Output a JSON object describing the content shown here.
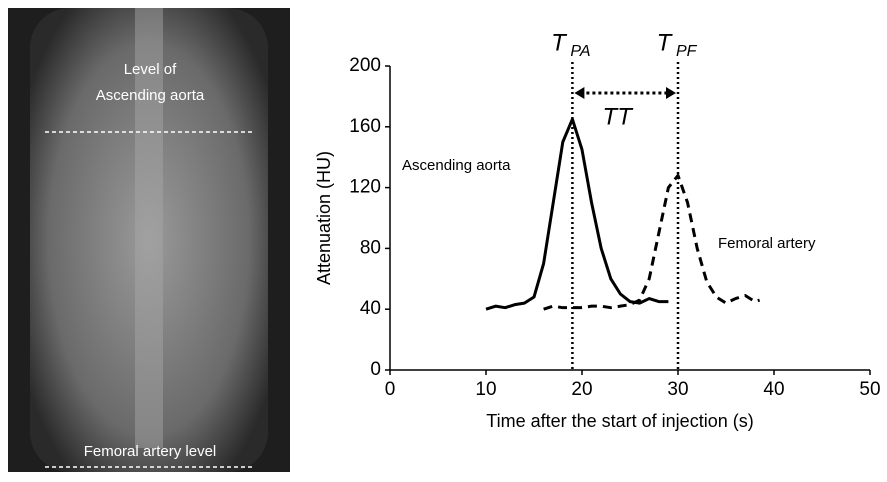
{
  "image": {
    "labels": [
      {
        "lines": [
          "Level of",
          "Ascending aorta"
        ]
      },
      {
        "lines": [
          "Femoral artery level"
        ]
      }
    ]
  },
  "chart_data": {
    "type": "line",
    "x_label": "Time after the start of injection (s)",
    "y_label": "Attenuation (HU)",
    "xlim": [
      0,
      50
    ],
    "xticks": [
      0,
      10,
      20,
      30,
      40,
      50
    ],
    "ylim": [
      0,
      200
    ],
    "yticks": [
      0,
      40,
      80,
      120,
      160,
      200
    ],
    "series": [
      {
        "name": "Ascending aorta",
        "color": "#000000",
        "dash": "solid",
        "x": [
          10,
          11,
          12,
          13,
          14,
          15,
          16,
          17,
          18,
          19,
          20,
          21,
          22,
          23,
          24,
          25,
          26,
          27,
          28,
          29
        ],
        "values": [
          40,
          42,
          41,
          43,
          44,
          48,
          70,
          110,
          150,
          165,
          145,
          110,
          80,
          60,
          50,
          45,
          44,
          47,
          45,
          45
        ]
      },
      {
        "name": "Femoral artery",
        "color": "#000000",
        "dash": "dashed",
        "x": [
          16,
          17,
          18,
          19,
          20,
          21,
          22,
          23,
          24,
          25,
          26,
          27,
          28,
          29,
          30,
          31,
          32,
          33,
          34,
          35,
          36,
          37,
          38,
          38.5
        ],
        "values": [
          40,
          42,
          41,
          41,
          41,
          42,
          42,
          41,
          42,
          43,
          46,
          60,
          90,
          120,
          128,
          110,
          80,
          58,
          48,
          44,
          47,
          49,
          45,
          46
        ]
      }
    ],
    "markers": [
      {
        "label": "T",
        "subscript": "PA",
        "x": 19
      },
      {
        "label": "T",
        "subscript": "PF",
        "x": 30
      }
    ],
    "interval_label": "TT"
  }
}
